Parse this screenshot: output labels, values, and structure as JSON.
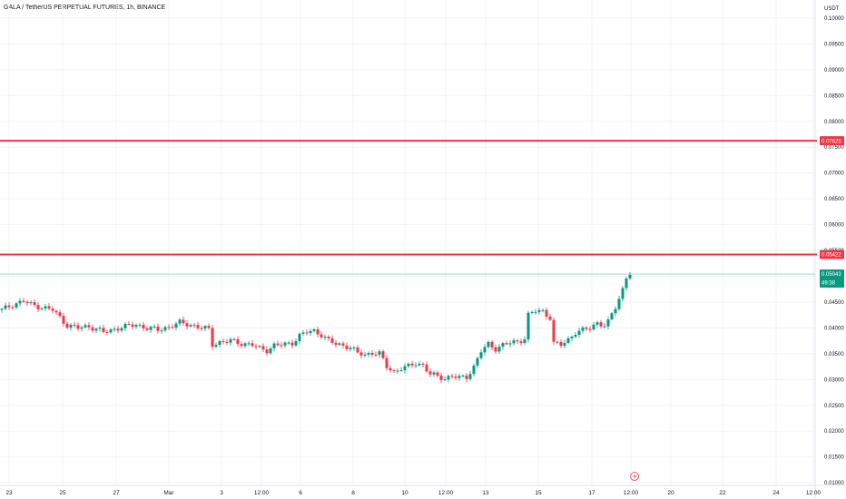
{
  "chart_data": {
    "type": "candlestick",
    "title": "GALA / TetherUS PERPETUAL FUTURES, 1h, BINANCE",
    "y_axis_unit": "USDT",
    "ylim": [
      0.0095,
      0.1035
    ],
    "y_ticks": [
      "0.10000",
      "0.09500",
      "0.09000",
      "0.08500",
      "0.08000",
      "0.07500",
      "0.07000",
      "0.06500",
      "0.06000",
      "0.05500",
      "0.05000",
      "0.04500",
      "0.04000",
      "0.03500",
      "0.03000",
      "0.02500",
      "0.02000",
      "0.01500",
      "0.01000"
    ],
    "x_ticks": [
      "23",
      "25",
      "27",
      "Mar",
      "3",
      "12:00",
      "6",
      "8",
      "10",
      "12:00",
      "13",
      "15",
      "17",
      "12:00",
      "20",
      "22",
      "24",
      "12:00"
    ],
    "horizontal_lines": [
      {
        "price": 0.07625,
        "label": "0.07625",
        "color": "#f23645"
      },
      {
        "price": 0.05422,
        "label": "0.05422",
        "color": "#f23645"
      }
    ],
    "last_price": {
      "price": "0.05043",
      "countdown": "49:38",
      "value": 0.05043,
      "color": "#089981"
    },
    "colors": {
      "up": "#089981",
      "down": "#f23645",
      "grid": "#f0f3fa"
    },
    "price_path": [
      [
        0,
        0.0435
      ],
      [
        3,
        0.0445
      ],
      [
        6,
        0.0452
      ],
      [
        8,
        0.0445
      ],
      [
        11,
        0.044
      ],
      [
        14,
        0.0435
      ],
      [
        16,
        0.042
      ],
      [
        18,
        0.0405
      ],
      [
        21,
        0.04
      ],
      [
        24,
        0.0403
      ],
      [
        26,
        0.0398
      ],
      [
        28,
        0.0392
      ],
      [
        30,
        0.0395
      ],
      [
        32,
        0.04
      ],
      [
        35,
        0.0404
      ],
      [
        37,
        0.0406
      ],
      [
        40,
        0.04
      ],
      [
        43,
        0.0396
      ],
      [
        46,
        0.0402
      ],
      [
        49,
        0.041
      ],
      [
        52,
        0.0406
      ],
      [
        55,
        0.04
      ],
      [
        57,
        0.0397
      ],
      [
        58,
        0.0368
      ],
      [
        60,
        0.0372
      ],
      [
        63,
        0.0375
      ],
      [
        66,
        0.037
      ],
      [
        69,
        0.0367
      ],
      [
        71,
        0.036
      ],
      [
        73,
        0.0357
      ],
      [
        75,
        0.0366
      ],
      [
        78,
        0.0368
      ],
      [
        80,
        0.0371
      ],
      [
        82,
        0.0385
      ],
      [
        84,
        0.0392
      ],
      [
        86,
        0.0394
      ],
      [
        88,
        0.0387
      ],
      [
        90,
        0.0375
      ],
      [
        92,
        0.0369
      ],
      [
        94,
        0.0366
      ],
      [
        96,
        0.0362
      ],
      [
        98,
        0.0351
      ],
      [
        100,
        0.0348
      ],
      [
        102,
        0.0352
      ],
      [
        104,
        0.035
      ],
      [
        106,
        0.0325
      ],
      [
        108,
        0.0315
      ],
      [
        110,
        0.0322
      ],
      [
        112,
        0.0325
      ],
      [
        114,
        0.0332
      ],
      [
        116,
        0.0328
      ],
      [
        118,
        0.031
      ],
      [
        120,
        0.0306
      ],
      [
        122,
        0.0302
      ],
      [
        124,
        0.0307
      ],
      [
        126,
        0.0303
      ],
      [
        128,
        0.0305
      ],
      [
        130,
        0.0325
      ],
      [
        132,
        0.0355
      ],
      [
        134,
        0.0368
      ],
      [
        136,
        0.036
      ],
      [
        138,
        0.0367
      ],
      [
        140,
        0.0371
      ],
      [
        142,
        0.0373
      ],
      [
        144,
        0.038
      ],
      [
        145,
        0.0425
      ],
      [
        147,
        0.0433
      ],
      [
        149,
        0.0432
      ],
      [
        151,
        0.042
      ],
      [
        152,
        0.037
      ],
      [
        154,
        0.0367
      ],
      [
        156,
        0.0377
      ],
      [
        158,
        0.0392
      ],
      [
        160,
        0.0395
      ],
      [
        162,
        0.04
      ],
      [
        164,
        0.041
      ],
      [
        166,
        0.0405
      ],
      [
        167,
        0.0411
      ],
      [
        169,
        0.044
      ],
      [
        171,
        0.0475
      ],
      [
        172,
        0.0498
      ],
      [
        173,
        0.0506
      ]
    ]
  }
}
